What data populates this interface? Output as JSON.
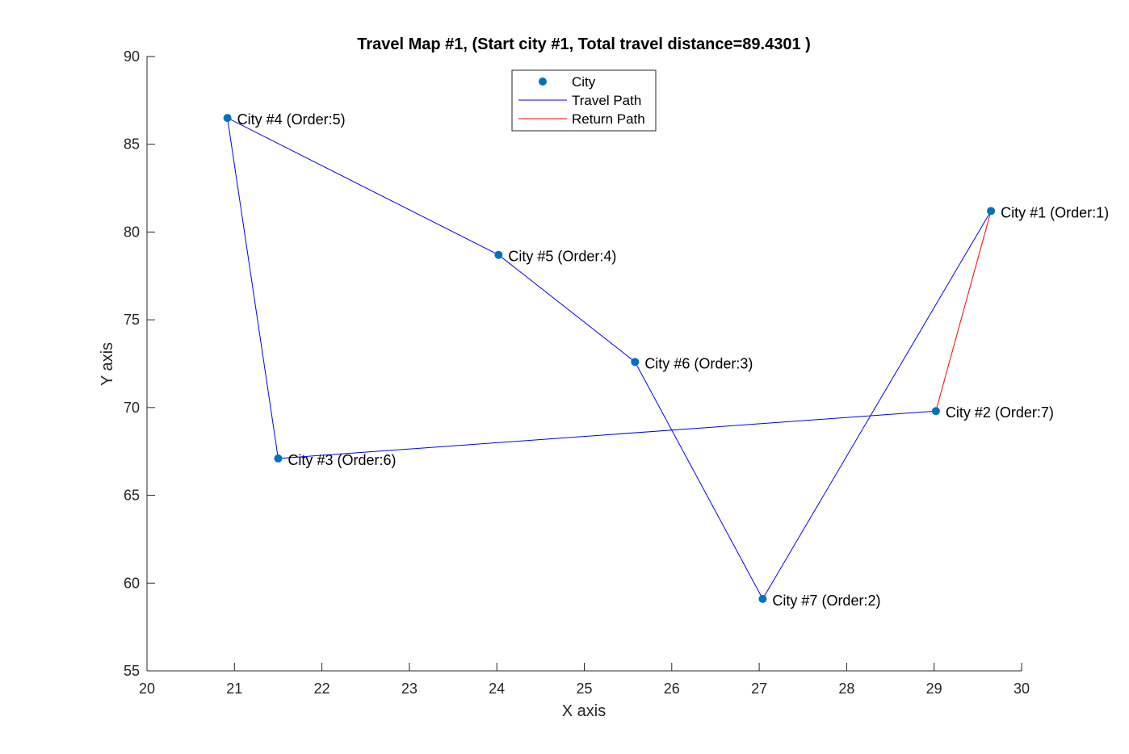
{
  "chart_data": {
    "type": "scatter",
    "title": "Travel Map #1, (Start city #1, Total travel distance=89.4301 )",
    "xlabel": "X axis",
    "ylabel": "Y axis",
    "xlim": [
      20,
      30
    ],
    "ylim": [
      55,
      90
    ],
    "xticks": [
      20,
      21,
      22,
      23,
      24,
      25,
      26,
      27,
      28,
      29,
      30
    ],
    "yticks": [
      55,
      60,
      65,
      70,
      75,
      80,
      85,
      90
    ],
    "grid": false,
    "legend_position": "top-center",
    "series": [
      {
        "name": "City",
        "kind": "markers",
        "color": "#0072BD",
        "points": [
          {
            "x": 29.65,
            "y": 81.2,
            "label": "City #1 (Order:1)"
          },
          {
            "x": 29.02,
            "y": 69.8,
            "label": "City #2 (Order:7)"
          },
          {
            "x": 21.5,
            "y": 67.1,
            "label": "City #3 (Order:6)"
          },
          {
            "x": 20.92,
            "y": 86.5,
            "label": "City #4 (Order:5)"
          },
          {
            "x": 24.02,
            "y": 78.7,
            "label": "City #5 (Order:4)"
          },
          {
            "x": 25.58,
            "y": 72.6,
            "label": "City #6 (Order:3)"
          },
          {
            "x": 27.04,
            "y": 59.1,
            "label": "City #7 (Order:2)"
          }
        ]
      },
      {
        "name": "Travel Path",
        "kind": "line",
        "color": "#0000FF",
        "points": [
          {
            "x": 29.65,
            "y": 81.2
          },
          {
            "x": 27.04,
            "y": 59.1
          },
          {
            "x": 25.58,
            "y": 72.6
          },
          {
            "x": 24.02,
            "y": 78.7
          },
          {
            "x": 20.92,
            "y": 86.5
          },
          {
            "x": 21.5,
            "y": 67.1
          },
          {
            "x": 29.02,
            "y": 69.8
          }
        ]
      },
      {
        "name": "Return Path",
        "kind": "line",
        "color": "#FF0000",
        "points": [
          {
            "x": 29.02,
            "y": 69.8
          },
          {
            "x": 29.65,
            "y": 81.2
          }
        ]
      }
    ]
  }
}
